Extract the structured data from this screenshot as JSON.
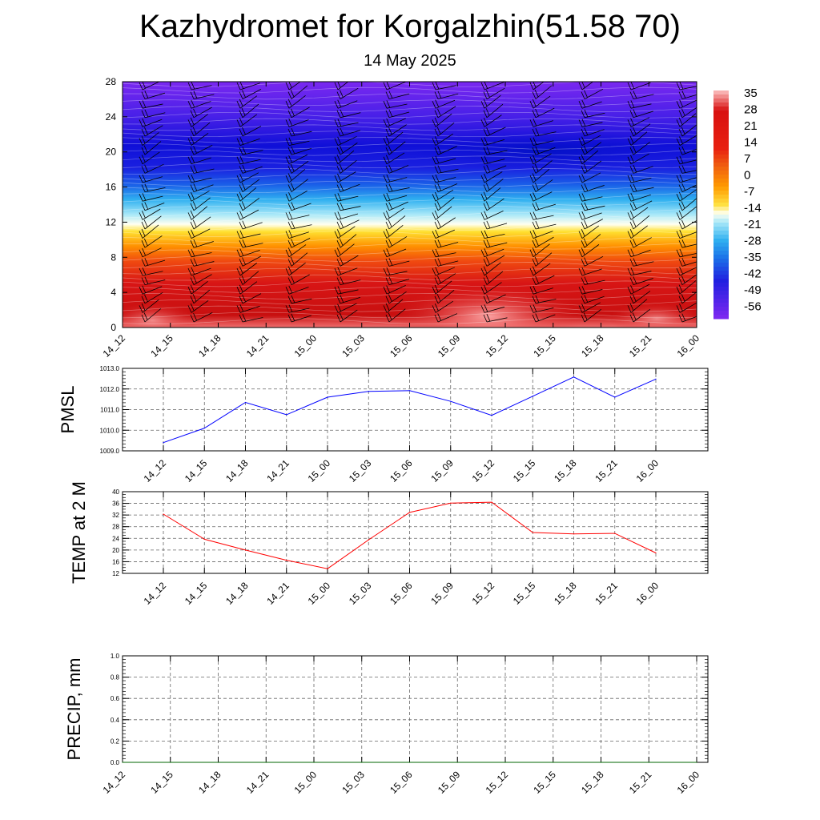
{
  "title": "Kazhydromet for Korgalzhin(51.58 70)",
  "subtitle": "14 May 2025",
  "colors": {
    "pmsl_line": "#0000ff",
    "temp_line": "#ff0000",
    "precip_line": "#006400",
    "grid": "#666666"
  },
  "chart_data": [
    {
      "type": "heatmap",
      "name": "vertical-section",
      "x": [
        "14_12",
        "14_15",
        "14_18",
        "14_21",
        "15_00",
        "15_03",
        "15_06",
        "15_09",
        "15_12",
        "15_15",
        "15_18",
        "15_21",
        "16_00"
      ],
      "y_ticks": [
        0,
        4,
        8,
        12,
        16,
        20,
        24,
        28
      ],
      "ylim": [
        0,
        28
      ],
      "colorbar_labels": [
        "35",
        "28",
        "21",
        "14",
        "7",
        "0",
        "-7",
        "-14",
        "-21",
        "-28",
        "-35",
        "-42",
        "-49",
        "-56"
      ],
      "colorbar_range": [
        -60,
        38
      ],
      "has_wind_barbs": true
    },
    {
      "type": "line",
      "name": "pmsl",
      "ylabel": "PMSL",
      "x": [
        "14_12",
        "14_15",
        "14_18",
        "14_21",
        "15_00",
        "15_03",
        "15_06",
        "15_09",
        "15_12",
        "15_15",
        "15_18",
        "15_21",
        "16_00"
      ],
      "values": [
        1009.4,
        1010.1,
        1011.35,
        1010.75,
        1011.6,
        1011.88,
        1011.92,
        1011.4,
        1010.72,
        1011.65,
        1012.58,
        1011.6,
        1012.48
      ],
      "ylim": [
        1009.0,
        1013.0
      ],
      "y_ticks": [
        "1009.0",
        "1010.0",
        "1011.0",
        "1012.0",
        "1013.0"
      ]
    },
    {
      "type": "line",
      "name": "temp",
      "ylabel": "TEMP at 2 M",
      "x": [
        "14_12",
        "14_15",
        "14_18",
        "14_21",
        "15_00",
        "15_03",
        "15_06",
        "15_09",
        "15_12",
        "15_15",
        "15_18",
        "15_21",
        "16_00"
      ],
      "values": [
        32.3,
        23.7,
        20.0,
        16.5,
        13.6,
        23.5,
        32.9,
        36.1,
        36.4,
        26.0,
        25.5,
        25.7,
        19.0
      ],
      "ylim": [
        12,
        40
      ],
      "y_ticks": [
        "12",
        "16",
        "20",
        "24",
        "28",
        "32",
        "36",
        "40"
      ]
    },
    {
      "type": "line",
      "name": "precip",
      "ylabel": "PRECIP, mm",
      "x": [
        "14_12",
        "14_15",
        "14_18",
        "14_21",
        "15_00",
        "15_03",
        "15_06",
        "15_09",
        "15_12",
        "15_15",
        "15_18",
        "15_21",
        "16_00"
      ],
      "values": [
        0,
        0,
        0,
        0,
        0,
        0,
        0,
        0,
        0,
        0,
        0,
        0,
        0
      ],
      "ylim": [
        0.0,
        1.0
      ],
      "y_ticks": [
        "0.0",
        "0.2",
        "0.4",
        "0.6",
        "0.8",
        "1.0"
      ]
    }
  ]
}
